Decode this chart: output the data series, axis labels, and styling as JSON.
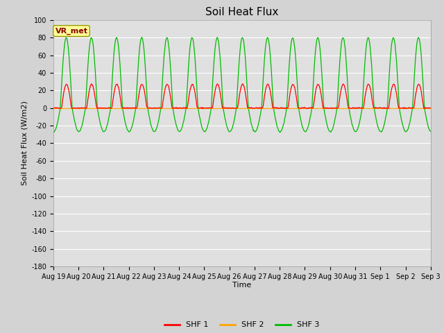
{
  "title": "Soil Heat Flux",
  "xlabel": "Time",
  "ylabel": "Soil Heat Flux (W/m2)",
  "ylim": [
    -180,
    100
  ],
  "yticks": [
    100,
    80,
    60,
    40,
    20,
    0,
    -20,
    -40,
    -60,
    -80,
    -100,
    -120,
    -140,
    -160,
    -180
  ],
  "num_days": 15,
  "shf1_color": "#ff0000",
  "shf2_color": "#ffa500",
  "shf3_color": "#00bb00",
  "background_color": "#d3d3d3",
  "plot_bg_color": "#e0e0e0",
  "annotation_text": "VR_met",
  "annotation_color": "#880000",
  "annotation_bg": "#ffff99",
  "legend_labels": [
    "SHF 1",
    "SHF 2",
    "SHF 3"
  ],
  "title_fontsize": 11,
  "axis_label_fontsize": 8,
  "tick_fontsize": 7,
  "legend_fontsize": 8
}
